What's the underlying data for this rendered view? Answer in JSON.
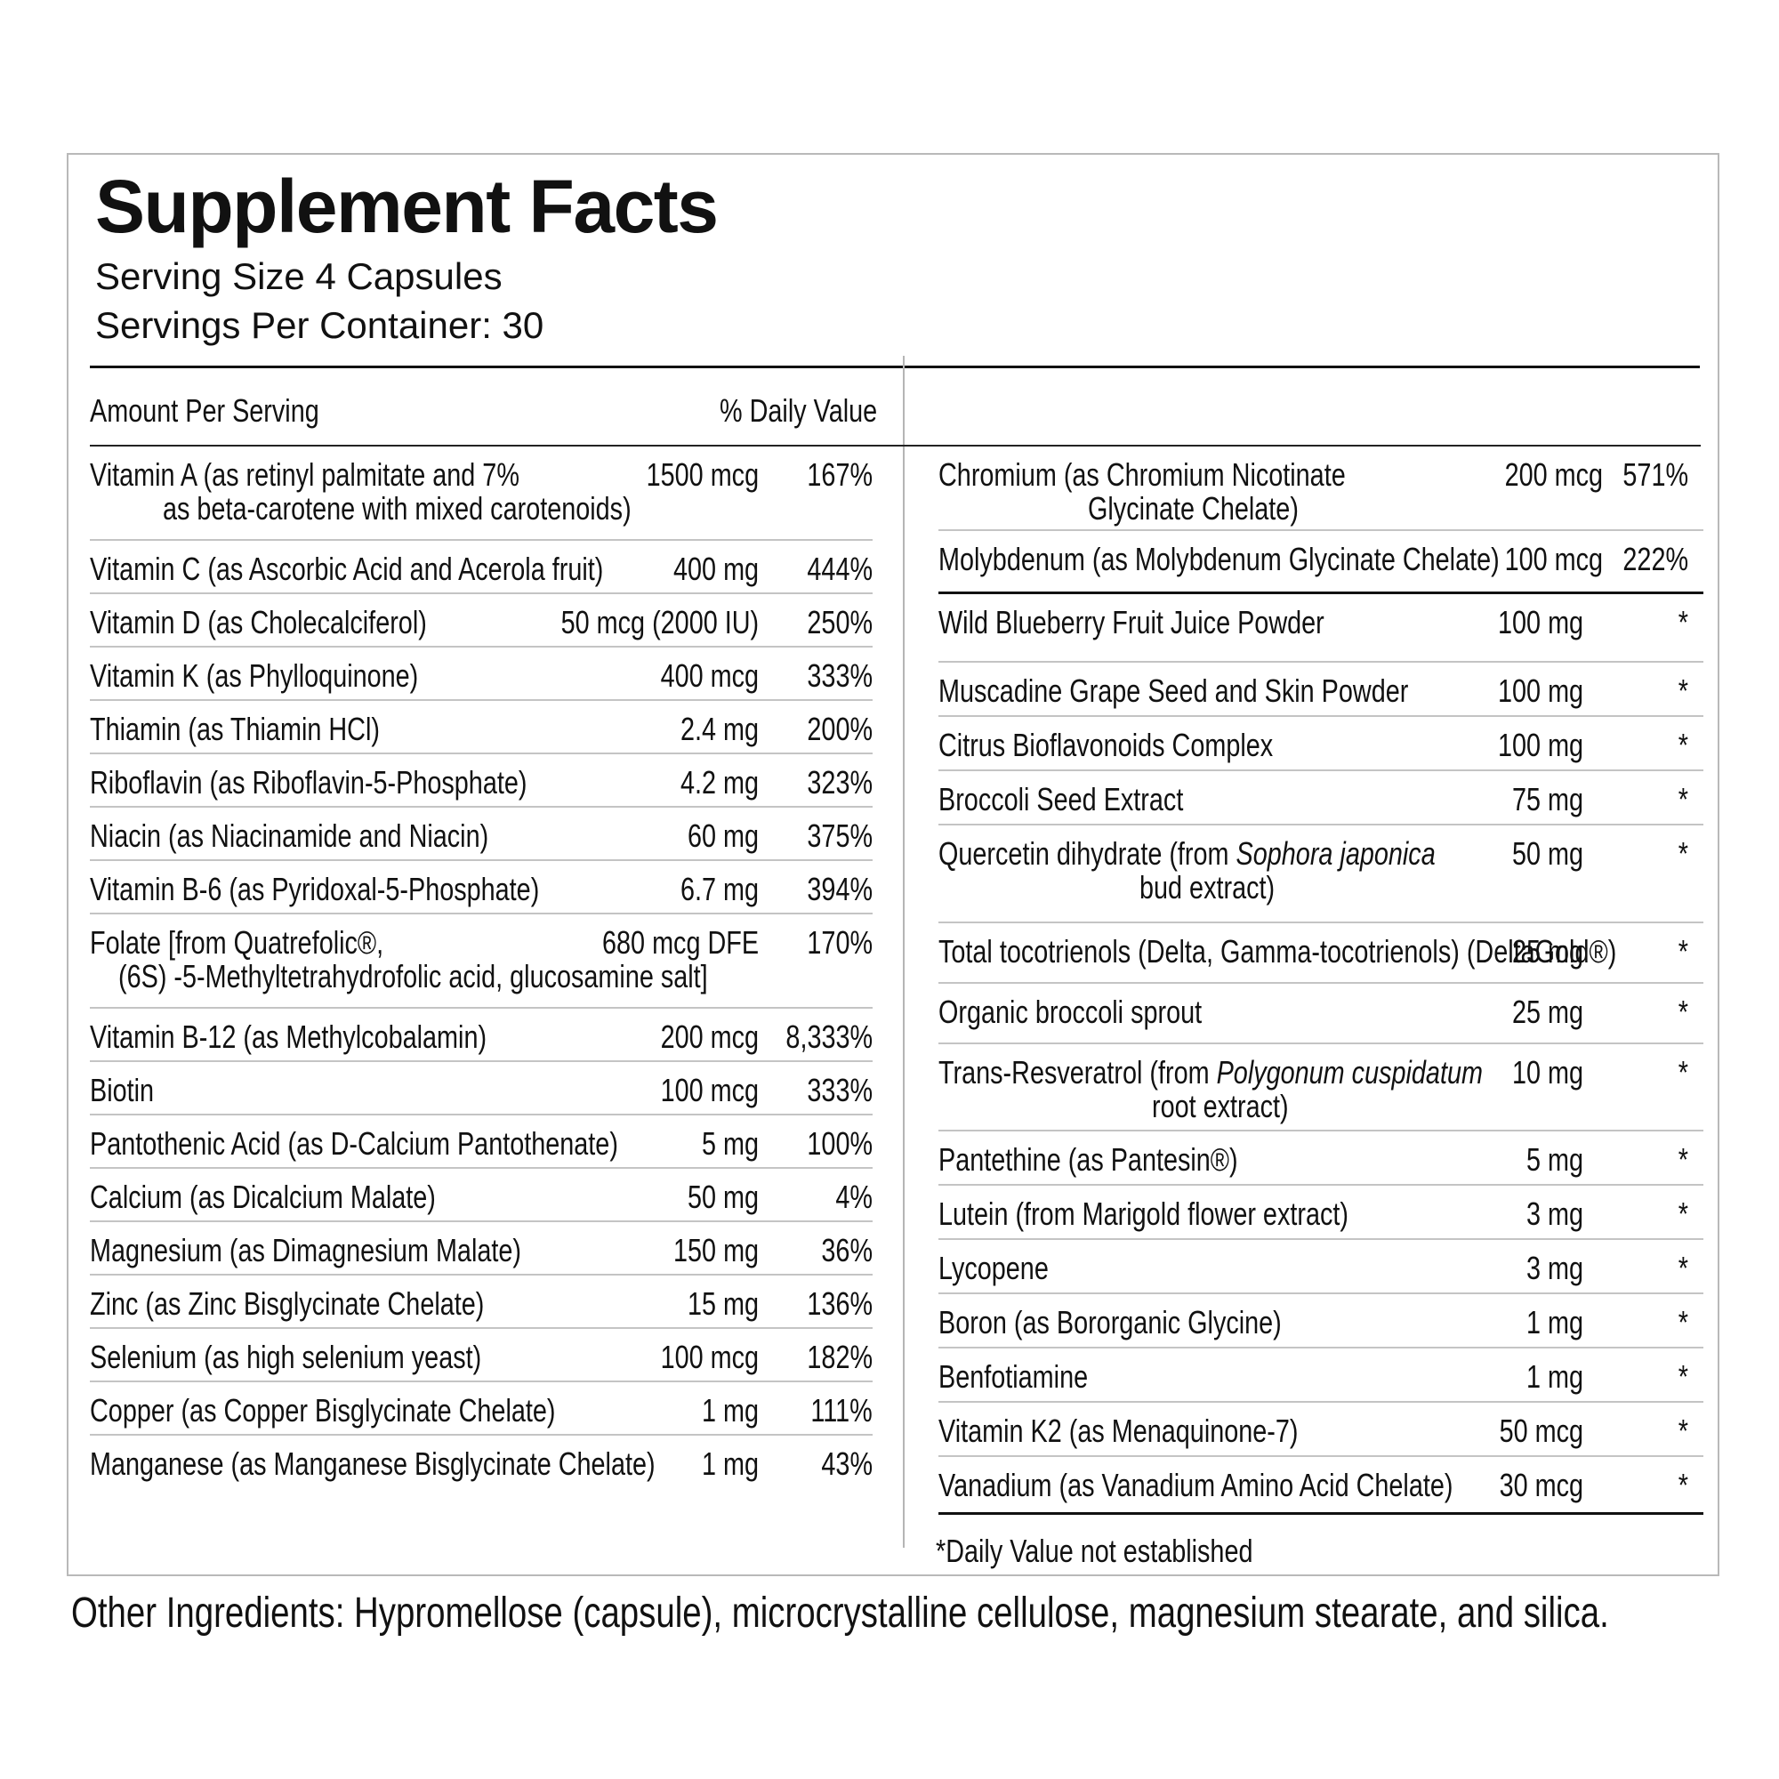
{
  "title": "Supplement Facts",
  "serving_size": "Serving Size 4 Capsules",
  "servings_per_container": "Servings Per Container: 30",
  "header": {
    "amount_per_serving": "Amount Per Serving",
    "daily_value": "% Daily Value"
  },
  "left_rows": [
    {
      "name": "Vitamin A  (as retinyl palmitate and 7%",
      "name2": "as beta-carotene with mixed carotenoids)",
      "amount": "1500 mcg",
      "dv": "167%"
    },
    {
      "name": "Vitamin C (as Ascorbic Acid and Acerola fruit)",
      "amount": "400 mg",
      "dv": "444%"
    },
    {
      "name": "Vitamin D (as Cholecalciferol)",
      "amount": "50 mcg (2000 IU)",
      "dv": "250%"
    },
    {
      "name": "Vitamin K (as Phylloquinone)",
      "amount": "400 mcg",
      "dv": "333%"
    },
    {
      "name": "Thiamin (as Thiamin HCl)",
      "amount": "2.4 mg",
      "dv": "200%"
    },
    {
      "name": "Riboflavin (as Riboflavin-5-Phosphate)",
      "amount": "4.2 mg",
      "dv": "323%"
    },
    {
      "name": "Niacin (as Niacinamide and Niacin)",
      "amount": "60 mg",
      "dv": "375%"
    },
    {
      "name": "Vitamin B-6 (as Pyridoxal-5-Phosphate)",
      "amount": "6.7 mg",
      "dv": "394%"
    },
    {
      "name": "Folate [from Quatrefolic®,",
      "name2": "(6S) -5-Methyltetrahydrofolic acid, glucosamine salt]",
      "amount": "680 mcg DFE",
      "dv": "170%"
    },
    {
      "name": "Vitamin B-12 (as Methylcobalamin)",
      "amount": "200 mcg",
      "dv": "8,333%"
    },
    {
      "name": "Biotin",
      "amount": "100 mcg",
      "dv": "333%"
    },
    {
      "name": "Pantothenic Acid (as D-Calcium Pantothenate)",
      "amount": "5 mg",
      "dv": "100%"
    },
    {
      "name": "Calcium (as Dicalcium Malate)",
      "amount": "50 mg",
      "dv": "4%"
    },
    {
      "name": "Magnesium (as Dimagnesium Malate)",
      "amount": "150 mg",
      "dv": "36%"
    },
    {
      "name": "Zinc (as Zinc Bisglycinate Chelate)",
      "amount": "15 mg",
      "dv": "136%"
    },
    {
      "name": "Selenium (as high selenium yeast)",
      "amount": "100 mcg",
      "dv": "182%"
    },
    {
      "name": "Copper (as Copper Bisglycinate Chelate)",
      "amount": "1 mg",
      "dv": "111%"
    },
    {
      "name": "Manganese  (as Manganese Bisglycinate Chelate)",
      "amount": "1 mg",
      "dv": "43%"
    }
  ],
  "right_rows_a": [
    {
      "name": "Chromium (as Chromium Nicotinate",
      "name2": "Glycinate Chelate)",
      "amount": "200 mcg",
      "dv": "571%"
    },
    {
      "name": "Molybdenum (as Molybdenum Glycinate Chelate)",
      "amount": "100 mcg",
      "dv": "222%"
    }
  ],
  "right_rows_b": [
    {
      "name": "Wild Blueberry Fruit Juice Powder",
      "amount": "100 mg",
      "dv": "*"
    },
    {
      "name": "Muscadine Grape Seed and Skin Powder",
      "amount": "100 mg",
      "dv": "*"
    },
    {
      "name": "Citrus Bioflavonoids Complex",
      "amount": "100 mg",
      "dv": "*"
    },
    {
      "name": "Broccoli Seed Extract",
      "amount": "75 mg",
      "dv": "*"
    },
    {
      "name": "Quercetin dihydrate (from ",
      "name_italic": "Sophora japonica",
      "name2": "bud extract)",
      "amount": "50 mg",
      "dv": "*"
    },
    {
      "name": "Total tocotrienols (Delta, Gamma-tocotrienols) (DeltaGold®)",
      "amount": "25 mg",
      "dv": "*"
    },
    {
      "name": "Organic broccoli sprout",
      "amount": "25 mg",
      "dv": "*"
    },
    {
      "name": "Trans-Resveratrol (from ",
      "name_italic": "Polygonum cuspidatum",
      "name2": "root extract)",
      "amount": "10 mg",
      "dv": "*"
    },
    {
      "name": "Pantethine (as Pantesin®)",
      "amount": "5 mg",
      "dv": "*"
    },
    {
      "name": "Lutein (from Marigold flower extract)",
      "amount": "3 mg",
      "dv": "*"
    },
    {
      "name": "Lycopene",
      "amount": "3 mg",
      "dv": "*"
    },
    {
      "name": "Boron (as Bororganic Glycine)",
      "amount": "1 mg",
      "dv": "*"
    },
    {
      "name": "Benfotiamine",
      "amount": "1 mg",
      "dv": "*"
    },
    {
      "name": "Vitamin K2 (as Menaquinone-7)",
      "amount": "50 mcg",
      "dv": "*"
    },
    {
      "name": "Vanadium  (as Vanadium Amino Acid Chelate)",
      "amount": "30 mcg",
      "dv": "*"
    }
  ],
  "footnote": "*Daily Value not established",
  "other_ingredients": "Other Ingredients: Hypromellose (capsule), microcrystalline cellulose, magnesium stearate, and silica."
}
